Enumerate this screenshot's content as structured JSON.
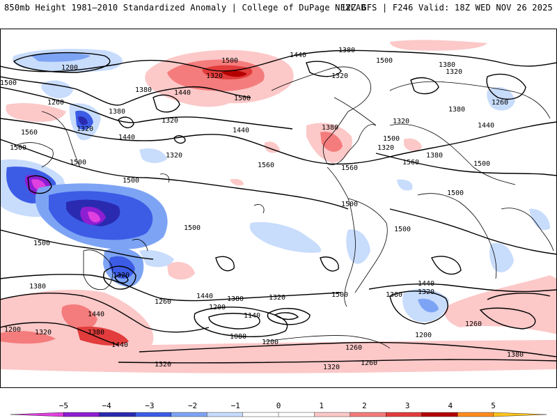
{
  "header": {
    "title": "850mb Height 1981–2010 Standardized Anomaly | College of DuPage NEXLAB",
    "run_info": "12Z GFS | F246 Valid: 18Z WED NOV 26 2025"
  },
  "contour_labels": [
    "1200",
    "1500",
    "1380",
    "1500",
    "1440",
    "1320",
    "1380",
    "1320",
    "1260",
    "1500",
    "1560",
    "1380",
    "1320",
    "1440",
    "1320",
    "1500",
    "1380",
    "1320",
    "1440",
    "1500",
    "1380",
    "1320",
    "1440",
    "1560",
    "1380",
    "1320",
    "1500",
    "1560",
    "1260",
    "1500",
    "1320",
    "1560",
    "1380",
    "1500",
    "1440",
    "1500",
    "1500",
    "1500",
    "1500",
    "1320",
    "1500",
    "1500",
    "1440",
    "1320",
    "1380",
    "1440",
    "1260",
    "1500",
    "1380",
    "1320",
    "1440",
    "1200",
    "1380",
    "1140",
    "1080",
    "1200",
    "1200",
    "1260",
    "1260",
    "1320",
    "1200",
    "1320",
    "1380",
    "1440",
    "1320",
    "1260",
    "1380"
  ],
  "colorbar": {
    "ticks": [
      "−5",
      "−4",
      "−3",
      "−2",
      "−1",
      "0",
      "1",
      "2",
      "3",
      "4",
      "5"
    ],
    "colors": [
      "#e040e0",
      "#8e1ed2",
      "#2a2ab0",
      "#3c5ce6",
      "#7da4f4",
      "#c8dcfc",
      "#ffffff",
      "#ffffff",
      "#fcc8c8",
      "#f47c7c",
      "#e23c3c",
      "#b40000",
      "#ff8c1e",
      "#ffc41e"
    ]
  }
}
